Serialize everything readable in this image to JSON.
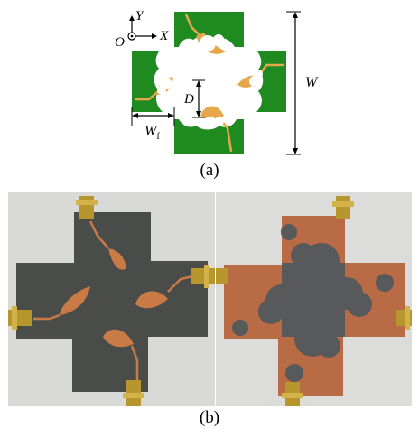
{
  "figure": {
    "part_a": {
      "caption": "(a)",
      "labels": {
        "y_axis": "Y",
        "x_axis": "X",
        "origin": "O",
        "dim_w": "W",
        "dim_d": "D",
        "dim_wf_main": "W",
        "dim_wf_sub": "f"
      },
      "colors": {
        "ground": "#1f8a1f",
        "patch": "#e6a64a"
      }
    },
    "part_b": {
      "caption": "(b)",
      "photo_left": "fabricated-antenna-top-view",
      "photo_right": "fabricated-antenna-bottom-view",
      "colors": {
        "substrate": "#4a4c4a",
        "copper": "#b86b45",
        "patch": "#c97a45"
      }
    }
  }
}
